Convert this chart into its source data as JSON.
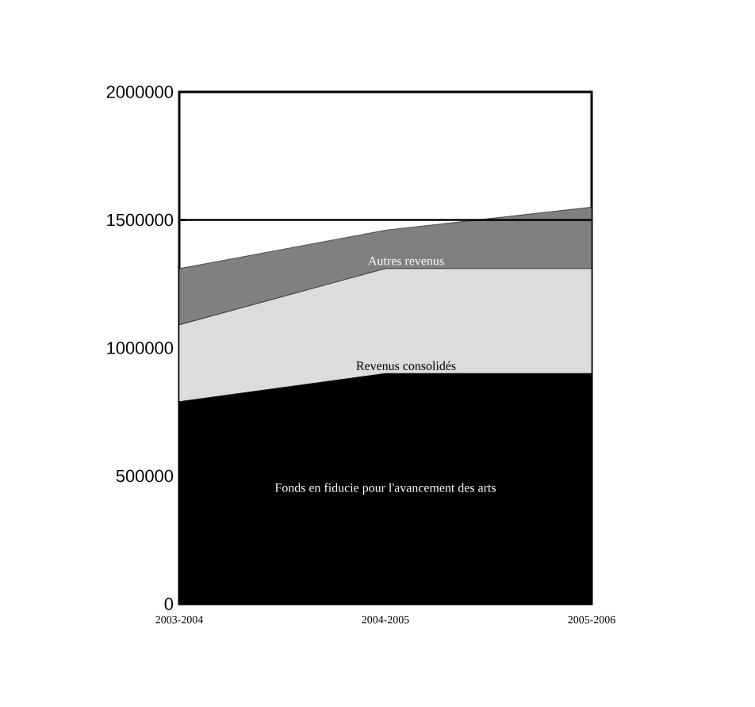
{
  "chart_data": {
    "type": "area",
    "stacked": true,
    "categories": [
      "2003-2004",
      "2004-2005",
      "2005-2006"
    ],
    "series": [
      {
        "name": "Fonds en fiducie pour l'avancement des arts",
        "color": "#000000",
        "values": [
          790000,
          900000,
          900000
        ]
      },
      {
        "name": "Revenus consolidés",
        "color": "#dcdcdc",
        "values": [
          300000,
          410000,
          410000
        ]
      },
      {
        "name": "Autres revenus",
        "color": "#808080",
        "values": [
          220000,
          150000,
          240000
        ]
      }
    ],
    "ylim": [
      0,
      2000000
    ],
    "yticks": [
      0,
      500000,
      1000000,
      1500000,
      2000000
    ],
    "ref_lines": [
      {
        "axis": "y",
        "value": 1500000
      }
    ],
    "legend": false,
    "grid": false
  }
}
